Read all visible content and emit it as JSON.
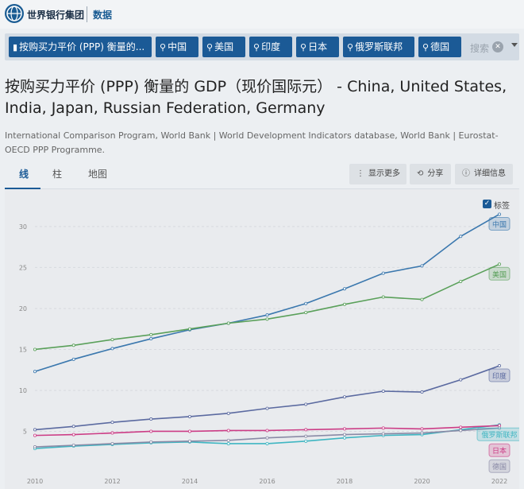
{
  "header": {
    "site_name": "世界银行集团",
    "section": "数据"
  },
  "filters": {
    "indicator": "按购买力平价 (PPP) 衡量的...",
    "countries": [
      "中国",
      "美国",
      "印度",
      "日本",
      "俄罗斯联邦",
      "德国"
    ],
    "search_placeholder": "搜索"
  },
  "page": {
    "title": "按购买力平价 (PPP) 衡量的 GDP（现价国际元） - China, United States, India, Japan, Russian Federation, Germany",
    "source": "International Comparison Program, World Bank | World Development Indicators database, World Bank | Eurostat-OECD PPP Programme."
  },
  "tabs": [
    "线",
    "柱",
    "地图"
  ],
  "actions": {
    "show_more": "显示更多",
    "share": "分享",
    "details": "详细信息"
  },
  "labels_toggle": "标签",
  "colors": {
    "accent": "#1b5a96",
    "china": "#3b78ae",
    "usa": "#5aa05a",
    "india": "#5b6aa0",
    "japan": "#cc3d86",
    "russia": "#3fb6c2",
    "germany": "#8a8aa6"
  },
  "chart_data": {
    "type": "line",
    "x": [
      2010,
      2011,
      2012,
      2013,
      2014,
      2015,
      2016,
      2017,
      2018,
      2019,
      2020,
      2021,
      2022
    ],
    "xticks": [
      "2010",
      "2012",
      "2014",
      "2016",
      "2018",
      "2020",
      "2022"
    ],
    "yticks": [
      "5",
      "10",
      "15",
      "20",
      "25",
      "30"
    ],
    "ylim": [
      0,
      33
    ],
    "series": [
      {
        "name": "中国",
        "color": "#3b78ae",
        "values": [
          12.3,
          13.8,
          15.1,
          16.3,
          17.4,
          18.2,
          19.2,
          20.6,
          22.4,
          24.3,
          25.2,
          28.8,
          31.5
        ]
      },
      {
        "name": "美国",
        "color": "#5aa05a",
        "values": [
          15.0,
          15.5,
          16.2,
          16.8,
          17.5,
          18.2,
          18.7,
          19.5,
          20.5,
          21.4,
          21.1,
          23.3,
          25.4
        ]
      },
      {
        "name": "印度",
        "color": "#5b6aa0",
        "values": [
          5.2,
          5.6,
          6.1,
          6.5,
          6.8,
          7.2,
          7.8,
          8.3,
          9.2,
          9.9,
          9.8,
          11.3,
          13.0
        ]
      },
      {
        "name": "俄罗斯联邦",
        "color": "#3fb6c2",
        "values": [
          2.9,
          3.2,
          3.4,
          3.6,
          3.7,
          3.5,
          3.5,
          3.8,
          4.2,
          4.5,
          4.6,
          5.2,
          5.8
        ]
      },
      {
        "name": "日本",
        "color": "#cc3d86",
        "values": [
          4.5,
          4.6,
          4.8,
          5.0,
          5.0,
          5.1,
          5.1,
          5.2,
          5.3,
          5.4,
          5.3,
          5.5,
          5.7
        ]
      },
      {
        "name": "德国",
        "color": "#8a8aa6",
        "values": [
          3.1,
          3.3,
          3.5,
          3.7,
          3.8,
          3.9,
          4.2,
          4.4,
          4.6,
          4.7,
          4.8,
          5.1,
          5.4
        ]
      }
    ]
  }
}
